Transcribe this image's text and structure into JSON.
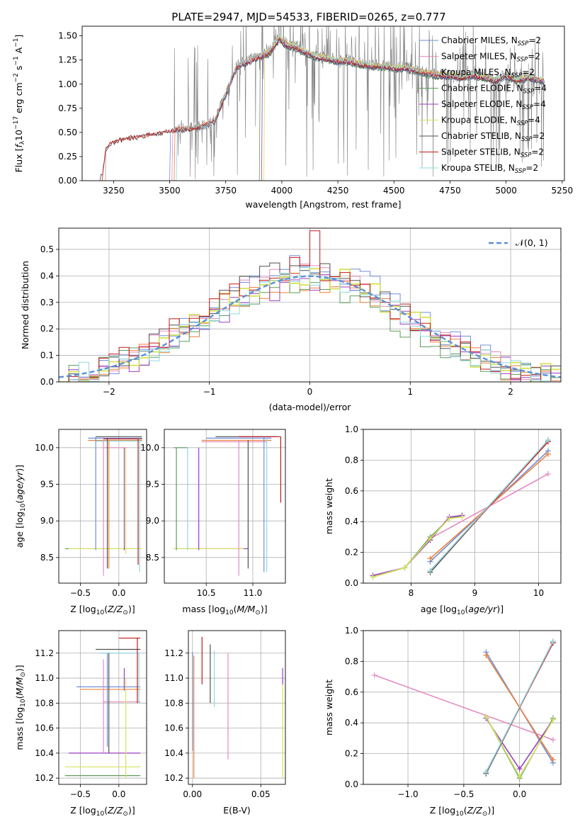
{
  "figure_title": "PLATE=2947, MJD=54533, FIBERID=0265, z=0.777",
  "legend_spectrum": [
    {
      "label": "Chabrier MILES, N",
      "sub": "SSP",
      "tail": "=2",
      "color": "#6f8fd8"
    },
    {
      "label": "Salpeter MILES, N",
      "sub": "SSP",
      "tail": "=2",
      "color": "#e58cc0"
    },
    {
      "label": "Kroupa MILES, N",
      "sub": "SSP",
      "tail": "=2",
      "color": "#ee7f3a"
    },
    {
      "label": "Chabrier ELODIE, N",
      "sub": "SSP",
      "tail": "=4",
      "color": "#5c9e5c"
    },
    {
      "label": "Salpeter ELODIE, N",
      "sub": "SSP",
      "tail": "=4",
      "color": "#9a3fc0"
    },
    {
      "label": "Kroupa ELODIE, N",
      "sub": "SSP",
      "tail": "=4",
      "color": "#d6e35a"
    },
    {
      "label": "Chabrier STELIB, N",
      "sub": "SSP",
      "tail": "=2",
      "color": "#505050"
    },
    {
      "label": "Salpeter STELIB, N",
      "sub": "SSP",
      "tail": "=2",
      "color": "#c21a1a"
    },
    {
      "label": "Kroupa STELIB, N",
      "sub": "SSP",
      "tail": "=2",
      "color": "#8fd9e0"
    }
  ],
  "hist_legend": "𝒩(0, 1)",
  "chart_data": [
    {
      "id": "spectrum",
      "type": "line",
      "xlabel": "wavelength [Angstrom, rest frame]",
      "ylabel": "Flux [f_λ 10^-17 erg cm^-2 s^-1 A^-1]",
      "xlim": [
        3110,
        5260
      ],
      "ylim": [
        0,
        1.6
      ],
      "xticks": [
        3250,
        3500,
        3750,
        4000,
        4250,
        4500,
        4750,
        5000,
        5250
      ],
      "yticks": [
        0.0,
        0.25,
        0.5,
        0.75,
        1.0,
        1.25,
        1.5
      ],
      "continuum_x": [
        3200,
        3215,
        3230,
        3260,
        3300,
        3350,
        3400,
        3450,
        3500,
        3550,
        3600,
        3650,
        3700,
        3750,
        3800,
        3850,
        3900,
        3950,
        3990,
        4020,
        4060,
        4100,
        4150,
        4200,
        4250,
        4300,
        4350,
        4400,
        4450,
        4500,
        4550,
        4600,
        4650,
        4700,
        4750,
        4800,
        4850,
        4900,
        4950,
        5000,
        5050,
        5100,
        5150
      ],
      "continuum_y": [
        0.05,
        0.32,
        0.38,
        0.42,
        0.44,
        0.46,
        0.48,
        0.5,
        0.52,
        0.54,
        0.55,
        0.57,
        0.62,
        0.9,
        1.2,
        1.25,
        1.3,
        1.35,
        1.5,
        1.42,
        1.4,
        1.35,
        1.3,
        1.28,
        1.25,
        1.25,
        1.22,
        1.2,
        1.2,
        1.18,
        1.18,
        1.15,
        1.12,
        1.1,
        1.1,
        1.08,
        1.1,
        1.08,
        1.05,
        1.1,
        1.05,
        1.08,
        1.05
      ],
      "series_start_x": [
        3500,
        3510,
        3520,
        3900,
        3910,
        3920,
        3190,
        3200,
        3530
      ],
      "data_range": [
        3190,
        5170
      ]
    },
    {
      "id": "residual_histogram",
      "type": "line",
      "xlabel": "(data-model)/error",
      "ylabel": "Normed distribution",
      "xlim": [
        -2.5,
        2.5
      ],
      "ylim": [
        0,
        0.58
      ],
      "xticks": [
        -2,
        -1,
        0,
        1,
        2
      ],
      "yticks": [
        0.0,
        0.1,
        0.2,
        0.3,
        0.4,
        0.5
      ],
      "reference_curve": "N(0,1)",
      "bin_width": 0.1
    },
    {
      "id": "age_vs_Z",
      "type": "scatter",
      "xlabel": "Z [log10(Z/Z☉)]",
      "ylabel": "age [log10(age/yr)]",
      "xlim": [
        -0.78,
        0.36
      ],
      "ylim": [
        8.15,
        10.25
      ],
      "xticks": [
        -0.5,
        0.0
      ],
      "yticks": [
        8.5,
        9.0,
        9.5,
        10.0
      ],
      "h_bars": [
        {
          "y": 10.13,
          "x0": -0.4,
          "x1": 0.3,
          "c": 0
        },
        {
          "y": 10.15,
          "x0": -0.3,
          "x1": 0.3,
          "c": 6
        },
        {
          "y": 10.1,
          "x0": -0.4,
          "x1": 0.3,
          "c": 2
        },
        {
          "y": 10.12,
          "x0": -0.2,
          "x1": 0.3,
          "c": 7
        },
        {
          "y": 10.09,
          "x0": -0.3,
          "x1": 0.3,
          "c": 8
        },
        {
          "y": 10.0,
          "x0": -0.2,
          "x1": 0.1,
          "c": 1
        },
        {
          "y": 8.62,
          "x0": -0.7,
          "x1": 0.3,
          "c": 3
        },
        {
          "y": 8.62,
          "x0": -0.65,
          "x1": 0.3,
          "c": 5
        }
      ],
      "v_bars": [
        {
          "x": -0.3,
          "y0": 8.6,
          "y1": 10.15,
          "c": 0
        },
        {
          "x": -0.2,
          "y0": 8.25,
          "y1": 10.15,
          "c": 1
        },
        {
          "x": -0.15,
          "y0": 8.35,
          "y1": 10.13,
          "c": 6
        },
        {
          "x": -0.13,
          "y0": 8.35,
          "y1": 10.1,
          "c": 2
        },
        {
          "x": 0.07,
          "y0": 8.6,
          "y1": 10.0,
          "c": 4
        },
        {
          "x": 0.09,
          "y0": 8.55,
          "y1": 10.0,
          "c": 5
        },
        {
          "x": 0.25,
          "y0": 8.4,
          "y1": 10.12,
          "c": 7
        },
        {
          "x": 0.27,
          "y0": 8.3,
          "y1": 10.12,
          "c": 8
        }
      ]
    },
    {
      "id": "age_vs_mass",
      "type": "scatter",
      "xlabel": "mass [log10(M/M☉)]",
      "ylabel": "",
      "xlim": [
        10.05,
        11.35
      ],
      "ylim": [
        8.15,
        10.25
      ],
      "xticks": [
        10.5,
        11.0
      ],
      "yticks": [
        8.5,
        9.0,
        9.5,
        10.0
      ],
      "h_bars": [
        {
          "y": 10.13,
          "x0": 10.5,
          "x1": 11.2,
          "c": 0
        },
        {
          "y": 10.15,
          "x0": 10.6,
          "x1": 11.25,
          "c": 6
        },
        {
          "y": 10.15,
          "x0": 10.85,
          "x1": 11.3,
          "c": 7
        },
        {
          "y": 10.1,
          "x0": 10.45,
          "x1": 11.2,
          "c": 2
        },
        {
          "y": 10.08,
          "x0": 10.45,
          "x1": 11.15,
          "c": 1
        },
        {
          "y": 10.0,
          "x0": 10.15,
          "x1": 10.3,
          "c": 3
        },
        {
          "y": 8.62,
          "x0": 10.15,
          "x1": 10.95,
          "c": 4
        },
        {
          "y": 8.62,
          "x0": 10.15,
          "x1": 10.9,
          "c": 5
        }
      ],
      "v_bars": [
        {
          "x": 10.18,
          "y0": 8.6,
          "y1": 10.0,
          "c": 3
        },
        {
          "x": 10.3,
          "y0": 8.6,
          "y1": 10.0,
          "c": 8
        },
        {
          "x": 10.42,
          "y0": 8.6,
          "y1": 10.0,
          "c": 4
        },
        {
          "x": 10.85,
          "y0": 8.25,
          "y1": 10.1,
          "c": 1
        },
        {
          "x": 10.95,
          "y0": 8.35,
          "y1": 10.1,
          "c": 6
        },
        {
          "x": 11.12,
          "y0": 8.3,
          "y1": 10.15,
          "c": 0
        },
        {
          "x": 11.15,
          "y0": 8.3,
          "y1": 10.12,
          "c": 8
        },
        {
          "x": 11.3,
          "y0": 9.25,
          "y1": 10.15,
          "c": 7
        }
      ]
    },
    {
      "id": "weight_vs_age",
      "type": "line",
      "xlabel": "age [log10(age/yr)]",
      "ylabel": "mass weight",
      "xlim": [
        7.25,
        10.35
      ],
      "ylim": [
        0,
        1.0
      ],
      "xticks": [
        8,
        9,
        10
      ],
      "yticks": [
        0.0,
        0.2,
        0.4,
        0.6,
        0.8,
        1.0
      ],
      "series": [
        {
          "name": "Chabrier MILES",
          "c": 0,
          "x": [
            8.3,
            10.15
          ],
          "y": [
            0.14,
            0.86
          ]
        },
        {
          "name": "Salpeter MILES",
          "c": 1,
          "x": [
            8.3,
            10.15
          ],
          "y": [
            0.29,
            0.71
          ]
        },
        {
          "name": "Kroupa MILES",
          "c": 2,
          "x": [
            8.3,
            10.15
          ],
          "y": [
            0.16,
            0.84
          ]
        },
        {
          "name": "Chabrier ELODIE",
          "c": 3,
          "x": [
            7.4,
            7.9,
            8.3,
            8.6,
            8.8
          ],
          "y": [
            0.04,
            0.1,
            0.3,
            0.42,
            0.44
          ]
        },
        {
          "name": "Salpeter ELODIE",
          "c": 4,
          "x": [
            7.4,
            7.9,
            8.3,
            8.6,
            8.8
          ],
          "y": [
            0.05,
            0.1,
            0.28,
            0.43,
            0.44
          ]
        },
        {
          "name": "Kroupa ELODIE",
          "c": 5,
          "x": [
            7.4,
            7.9,
            8.3,
            8.6,
            8.8
          ],
          "y": [
            0.04,
            0.1,
            0.29,
            0.42,
            0.43
          ]
        },
        {
          "name": "Chabrier STELIB",
          "c": 6,
          "x": [
            8.3,
            10.15
          ],
          "y": [
            0.07,
            0.93
          ]
        },
        {
          "name": "Salpeter STELIB",
          "c": 7,
          "x": [
            8.3,
            10.15
          ],
          "y": [
            0.08,
            0.92
          ]
        },
        {
          "name": "Kroupa STELIB",
          "c": 8,
          "x": [
            8.3,
            10.15
          ],
          "y": [
            0.08,
            0.93
          ]
        }
      ]
    },
    {
      "id": "mass_vs_Z",
      "type": "scatter",
      "xlabel": "Z [log10(Z/Z☉)]",
      "ylabel": "mass [log10(M/M☉)]",
      "xlim": [
        -0.78,
        0.36
      ],
      "ylim": [
        10.15,
        11.38
      ],
      "xticks": [
        -0.5,
        0.0
      ],
      "yticks": [
        10.2,
        10.4,
        10.6,
        10.8,
        11.0,
        11.2
      ],
      "h_bars": [
        {
          "y": 11.32,
          "x0": 0.0,
          "x1": 0.28,
          "c": 7
        },
        {
          "y": 11.23,
          "x0": -0.3,
          "x1": 0.28,
          "c": 6
        },
        {
          "y": 11.2,
          "x0": -0.25,
          "x1": 0.28,
          "c": 8
        },
        {
          "y": 10.93,
          "x0": -0.55,
          "x1": 0.28,
          "c": 0
        },
        {
          "y": 10.91,
          "x0": -0.5,
          "x1": 0.28,
          "c": 2
        },
        {
          "y": 10.81,
          "x0": -0.2,
          "x1": 0.28,
          "c": 1
        },
        {
          "y": 10.4,
          "x0": -0.65,
          "x1": 0.28,
          "c": 4
        },
        {
          "y": 10.29,
          "x0": -0.7,
          "x1": 0.28,
          "c": 5
        },
        {
          "y": 10.22,
          "x0": -0.7,
          "x1": 0.28,
          "c": 3
        }
      ],
      "v_bars": [
        {
          "x": -0.2,
          "y0": 10.4,
          "y1": 11.15,
          "c": 1
        },
        {
          "x": -0.15,
          "y0": 10.45,
          "y1": 11.2,
          "c": 0
        },
        {
          "x": -0.13,
          "y0": 10.4,
          "y1": 11.2,
          "c": 6
        },
        {
          "x": 0.07,
          "y0": 10.9,
          "y1": 11.08,
          "c": 4
        },
        {
          "x": 0.09,
          "y0": 10.2,
          "y1": 11.0,
          "c": 5
        },
        {
          "x": 0.24,
          "y0": 10.8,
          "y1": 11.32,
          "c": 7
        },
        {
          "x": 0.26,
          "y0": 10.8,
          "y1": 11.2,
          "c": 8
        }
      ]
    },
    {
      "id": "mass_vs_ebv",
      "type": "scatter",
      "xlabel": "E(B-V)",
      "ylabel": "",
      "xlim": [
        -0.003,
        0.068
      ],
      "ylim": [
        10.15,
        11.38
      ],
      "xticks": [
        0.0,
        0.05
      ],
      "yticks": [
        10.2,
        10.4,
        10.6,
        10.8,
        11.0,
        11.2
      ],
      "v_bars": [
        {
          "x": 0.0,
          "y0": 10.42,
          "y1": 11.21,
          "c": 0
        },
        {
          "x": 0.001,
          "y0": 10.2,
          "y1": 11.18,
          "c": 2
        },
        {
          "x": 0.007,
          "y0": 10.95,
          "y1": 11.33,
          "c": 7
        },
        {
          "x": 0.013,
          "y0": 10.8,
          "y1": 11.27,
          "c": 6
        },
        {
          "x": 0.016,
          "y0": 10.77,
          "y1": 11.22,
          "c": 8
        },
        {
          "x": 0.026,
          "y0": 10.35,
          "y1": 11.2,
          "c": 1
        },
        {
          "x": 0.066,
          "y0": 10.2,
          "y1": 10.98,
          "c": 5
        },
        {
          "x": 0.066,
          "y0": 10.95,
          "y1": 11.08,
          "c": 4
        }
      ]
    },
    {
      "id": "weight_vs_Z",
      "type": "line",
      "xlabel": "Z [log10(Z/Z☉)]",
      "ylabel": "mass weight",
      "xlim": [
        -1.4,
        0.37
      ],
      "ylim": [
        0,
        1.0
      ],
      "xticks": [
        -1.0,
        -0.5,
        0.0
      ],
      "yticks": [
        0.0,
        0.2,
        0.4,
        0.6,
        0.8,
        1.0
      ],
      "series": [
        {
          "name": "Chabrier MILES",
          "c": 0,
          "x": [
            -0.3,
            0.3
          ],
          "y": [
            0.86,
            0.14
          ]
        },
        {
          "name": "Salpeter MILES",
          "c": 1,
          "x": [
            -1.3,
            0.3
          ],
          "y": [
            0.71,
            0.29
          ]
        },
        {
          "name": "Kroupa MILES",
          "c": 2,
          "x": [
            -0.3,
            0.3
          ],
          "y": [
            0.84,
            0.16
          ]
        },
        {
          "name": "Chabrier ELODIE",
          "c": 3,
          "x": [
            -0.3,
            0.0,
            0.3
          ],
          "y": [
            0.44,
            0.04,
            0.43
          ]
        },
        {
          "name": "Salpeter ELODIE",
          "c": 4,
          "x": [
            -0.3,
            0.0,
            0.3
          ],
          "y": [
            0.43,
            0.1,
            0.42
          ]
        },
        {
          "name": "Kroupa ELODIE",
          "c": 5,
          "x": [
            -0.3,
            0.0,
            0.3
          ],
          "y": [
            0.44,
            0.05,
            0.42
          ]
        },
        {
          "name": "Chabrier STELIB",
          "c": 6,
          "x": [
            -0.3,
            0.3
          ],
          "y": [
            0.07,
            0.93
          ]
        },
        {
          "name": "Salpeter STELIB",
          "c": 7,
          "x": [
            -0.3,
            0.3
          ],
          "y": [
            0.08,
            0.92
          ]
        },
        {
          "name": "Kroupa STELIB",
          "c": 8,
          "x": [
            -0.3,
            0.3
          ],
          "y": [
            0.08,
            0.93
          ]
        }
      ]
    }
  ]
}
